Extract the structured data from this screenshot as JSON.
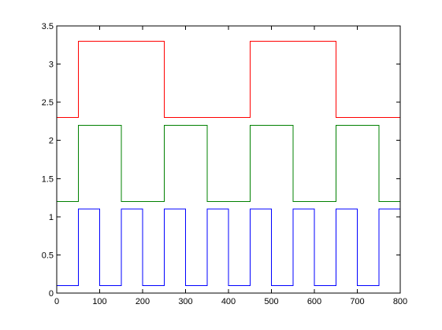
{
  "chart_data": {
    "type": "line",
    "title": "",
    "xlabel": "",
    "ylabel": "",
    "xlim": [
      0,
      800
    ],
    "ylim": [
      0,
      3.5
    ],
    "grid": false,
    "legend": "none",
    "x_ticks": [
      "0",
      "100",
      "200",
      "300",
      "400",
      "500",
      "600",
      "700",
      "800"
    ],
    "y_ticks": [
      "0",
      "0.5",
      "1",
      "1.5",
      "2",
      "2.5",
      "3",
      "3.5"
    ],
    "series": [
      {
        "color": "#ff0000",
        "x": [
          0,
          50,
          50,
          250,
          250,
          450,
          450,
          650,
          650,
          800
        ],
        "y": [
          2.3,
          2.3,
          3.3,
          3.3,
          2.3,
          2.3,
          3.3,
          3.3,
          2.3,
          2.3
        ]
      },
      {
        "color": "#008000",
        "x": [
          0,
          50,
          50,
          150,
          150,
          250,
          250,
          350,
          350,
          450,
          450,
          550,
          550,
          650,
          650,
          750,
          750,
          800
        ],
        "y": [
          1.2,
          1.2,
          2.2,
          2.2,
          1.2,
          1.2,
          2.2,
          2.2,
          1.2,
          1.2,
          2.2,
          2.2,
          1.2,
          1.2,
          2.2,
          2.2,
          1.2,
          1.2
        ]
      },
      {
        "color": "#0000ff",
        "x": [
          0,
          50,
          50,
          100,
          100,
          150,
          150,
          200,
          200,
          250,
          250,
          300,
          300,
          350,
          350,
          400,
          400,
          450,
          450,
          500,
          500,
          550,
          550,
          600,
          600,
          650,
          650,
          700,
          700,
          750,
          750,
          800
        ],
        "y": [
          0.1,
          0.1,
          1.1,
          1.1,
          0.1,
          0.1,
          1.1,
          1.1,
          0.1,
          0.1,
          1.1,
          1.1,
          0.1,
          0.1,
          1.1,
          1.1,
          0.1,
          0.1,
          1.1,
          1.1,
          0.1,
          0.1,
          1.1,
          1.1,
          0.1,
          0.1,
          1.1,
          1.1,
          0.1,
          0.1,
          1.1,
          1.1
        ]
      }
    ]
  }
}
